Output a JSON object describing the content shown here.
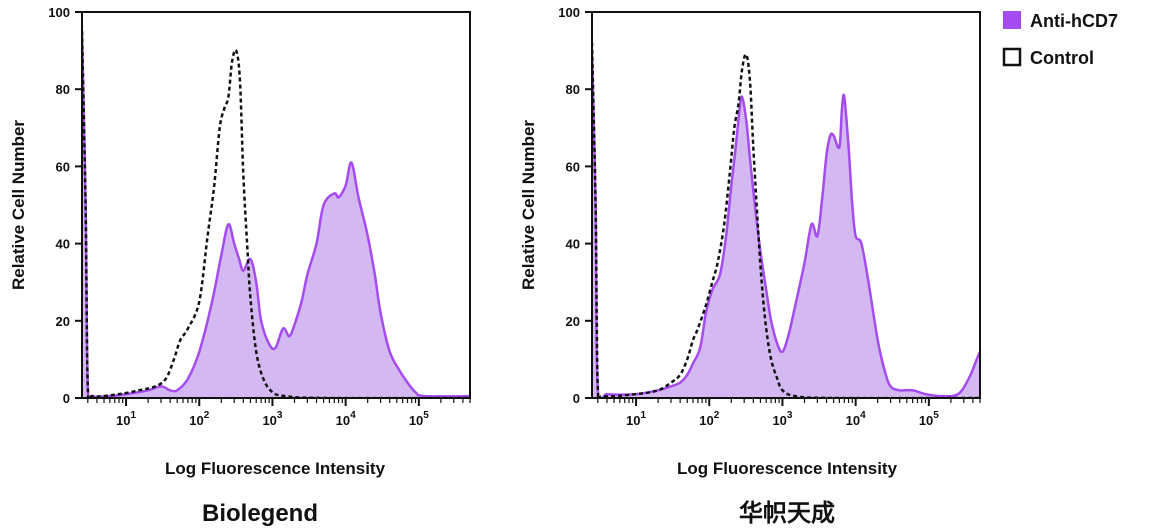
{
  "legend": {
    "items": [
      {
        "label": "Anti-hCD7",
        "style": "filled",
        "color": "#a54cf0"
      },
      {
        "label": "Control",
        "style": "outline",
        "color": "#111111"
      }
    ]
  },
  "colors": {
    "fill": "#d4b8f2",
    "stroke": "#a54cf0",
    "control": "#111111"
  },
  "chart_data": [
    {
      "type": "area",
      "title": "Biolegend",
      "xlabel": "Log Fluorescence Intensity",
      "ylabel": "Relative Cell Number",
      "xscale": "log",
      "xlim": [
        2.5,
        500000
      ],
      "ylim": [
        0,
        100
      ],
      "yticks": [
        "0",
        "20",
        "40",
        "60",
        "80",
        "100"
      ],
      "xticks": [
        {
          "base": "10",
          "exp": "1"
        },
        {
          "base": "10",
          "exp": "2"
        },
        {
          "base": "10",
          "exp": "3"
        },
        {
          "base": "10",
          "exp": "4"
        },
        {
          "base": "10",
          "exp": "5"
        }
      ],
      "series": [
        {
          "name": "Anti-hCD7",
          "points": [
            [
              2.5,
              95
            ],
            [
              2.8,
              50
            ],
            [
              3,
              3
            ],
            [
              3.5,
              0.5
            ],
            [
              6,
              0.5
            ],
            [
              10,
              1
            ],
            [
              20,
              2
            ],
            [
              30,
              3
            ],
            [
              40,
              2
            ],
            [
              50,
              2
            ],
            [
              70,
              5
            ],
            [
              100,
              12
            ],
            [
              150,
              25
            ],
            [
              200,
              37
            ],
            [
              250,
              45
            ],
            [
              300,
              40
            ],
            [
              350,
              36
            ],
            [
              400,
              33
            ],
            [
              500,
              36
            ],
            [
              600,
              30
            ],
            [
              700,
              20
            ],
            [
              900,
              14
            ],
            [
              1100,
              13
            ],
            [
              1400,
              18
            ],
            [
              1700,
              16
            ],
            [
              2000,
              19
            ],
            [
              2500,
              25
            ],
            [
              3000,
              32
            ],
            [
              4000,
              40
            ],
            [
              5000,
              50
            ],
            [
              7000,
              53
            ],
            [
              8000,
              52
            ],
            [
              10000,
              55
            ],
            [
              12000,
              61
            ],
            [
              15000,
              52
            ],
            [
              20000,
              42
            ],
            [
              25000,
              32
            ],
            [
              30000,
              22
            ],
            [
              40000,
              12
            ],
            [
              55000,
              7
            ],
            [
              70000,
              4
            ],
            [
              90000,
              1.5
            ],
            [
              120000,
              0.5
            ],
            [
              500000,
              0.5
            ]
          ]
        },
        {
          "name": "Control",
          "points": [
            [
              2.5,
              95
            ],
            [
              2.8,
              50
            ],
            [
              3,
              3
            ],
            [
              3.5,
              0.5
            ],
            [
              8,
              1
            ],
            [
              15,
              2
            ],
            [
              25,
              3
            ],
            [
              35,
              5
            ],
            [
              45,
              10
            ],
            [
              55,
              15
            ],
            [
              70,
              18
            ],
            [
              100,
              25
            ],
            [
              130,
              42
            ],
            [
              160,
              55
            ],
            [
              190,
              70
            ],
            [
              220,
              75
            ],
            [
              250,
              78
            ],
            [
              280,
              87
            ],
            [
              320,
              90
            ],
            [
              360,
              82
            ],
            [
              400,
              58
            ],
            [
              450,
              40
            ],
            [
              500,
              26
            ],
            [
              600,
              12
            ],
            [
              750,
              5
            ],
            [
              1000,
              1.5
            ],
            [
              1500,
              0.5
            ],
            [
              5000,
              0
            ],
            [
              500000,
              0
            ]
          ]
        }
      ]
    },
    {
      "type": "area",
      "title": "华帜天成",
      "xlabel": "Log Fluorescence Intensity",
      "ylabel": "Relative Cell Number",
      "xscale": "log",
      "xlim": [
        2.5,
        500000
      ],
      "ylim": [
        0,
        100
      ],
      "yticks": [
        "0",
        "20",
        "40",
        "60",
        "80",
        "100"
      ],
      "xticks": [
        {
          "base": "10",
          "exp": "1"
        },
        {
          "base": "10",
          "exp": "2"
        },
        {
          "base": "10",
          "exp": "3"
        },
        {
          "base": "10",
          "exp": "4"
        },
        {
          "base": "10",
          "exp": "5"
        }
      ],
      "series": [
        {
          "name": "Anti-hCD7",
          "points": [
            [
              2.5,
              90
            ],
            [
              2.8,
              50
            ],
            [
              3,
              2
            ],
            [
              4,
              1
            ],
            [
              10,
              1
            ],
            [
              20,
              2
            ],
            [
              30,
              3
            ],
            [
              40,
              4
            ],
            [
              50,
              6
            ],
            [
              60,
              9
            ],
            [
              75,
              13
            ],
            [
              90,
              22
            ],
            [
              110,
              28
            ],
            [
              140,
              32
            ],
            [
              170,
              42
            ],
            [
              200,
              55
            ],
            [
              230,
              65
            ],
            [
              260,
              75
            ],
            [
              280,
              78
            ],
            [
              320,
              72
            ],
            [
              360,
              62
            ],
            [
              420,
              50
            ],
            [
              500,
              38
            ],
            [
              600,
              28
            ],
            [
              700,
              20
            ],
            [
              850,
              14
            ],
            [
              1000,
              12
            ],
            [
              1200,
              16
            ],
            [
              1500,
              24
            ],
            [
              2000,
              35
            ],
            [
              2500,
              45
            ],
            [
              3000,
              42
            ],
            [
              3500,
              52
            ],
            [
              4000,
              63
            ],
            [
              4500,
              68
            ],
            [
              5000,
              68
            ],
            [
              6000,
              65
            ],
            [
              6500,
              75
            ],
            [
              7000,
              78
            ],
            [
              8000,
              65
            ],
            [
              9000,
              50
            ],
            [
              10000,
              42
            ],
            [
              12000,
              40
            ],
            [
              15000,
              30
            ],
            [
              20000,
              15
            ],
            [
              25000,
              7
            ],
            [
              30000,
              3
            ],
            [
              40000,
              2
            ],
            [
              60000,
              2
            ],
            [
              90000,
              1
            ],
            [
              150000,
              0.5
            ],
            [
              250000,
              1
            ],
            [
              350000,
              5
            ],
            [
              450000,
              10
            ],
            [
              500000,
              12
            ]
          ]
        },
        {
          "name": "Control",
          "points": [
            [
              2.5,
              92
            ],
            [
              2.8,
              50
            ],
            [
              3,
              3
            ],
            [
              3.5,
              0.5
            ],
            [
              10,
              1
            ],
            [
              20,
              2
            ],
            [
              30,
              4
            ],
            [
              40,
              6
            ],
            [
              50,
              10
            ],
            [
              60,
              15
            ],
            [
              70,
              18
            ],
            [
              90,
              24
            ],
            [
              110,
              30
            ],
            [
              130,
              35
            ],
            [
              160,
              45
            ],
            [
              190,
              58
            ],
            [
              220,
              70
            ],
            [
              250,
              76
            ],
            [
              280,
              85
            ],
            [
              320,
              89
            ],
            [
              360,
              82
            ],
            [
              400,
              65
            ],
            [
              450,
              48
            ],
            [
              520,
              30
            ],
            [
              600,
              18
            ],
            [
              700,
              10
            ],
            [
              850,
              5
            ],
            [
              1000,
              2
            ],
            [
              1500,
              0.5
            ],
            [
              5000,
              0
            ],
            [
              500000,
              0
            ]
          ]
        }
      ]
    }
  ]
}
